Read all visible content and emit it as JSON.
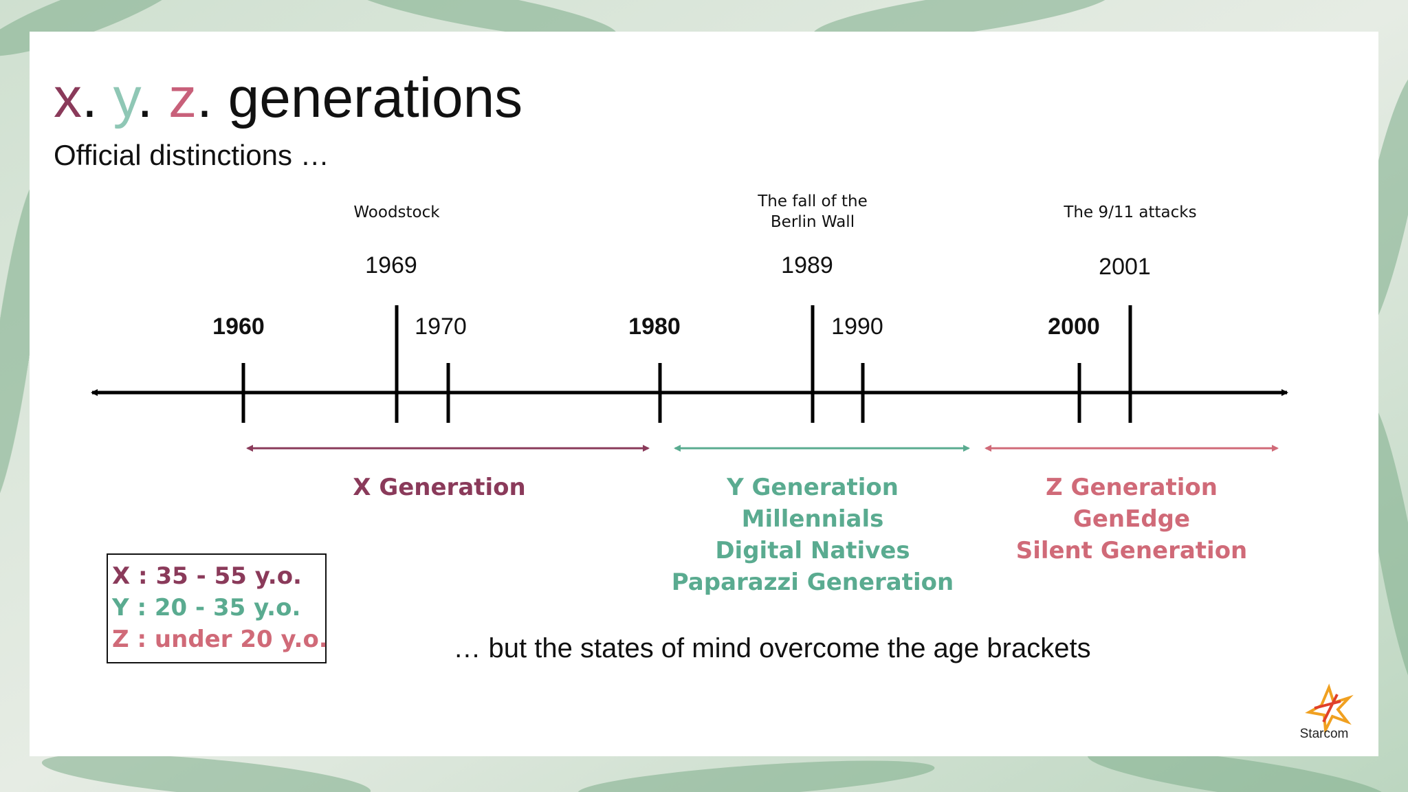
{
  "header": {
    "title": [
      "x",
      ". ",
      "y",
      ". ",
      "z",
      ". generations"
    ],
    "subtitle": "Official distinctions …"
  },
  "timeline": {
    "decades": [
      "1960",
      "1970",
      "1980",
      "1990",
      "2000"
    ],
    "events": [
      {
        "label": [
          "Woodstock"
        ],
        "year": "1969"
      },
      {
        "label": [
          "The fall of the",
          "Berlin Wall"
        ],
        "year": "1989"
      },
      {
        "label": [
          "The 9/11 attacks"
        ],
        "year": "2001"
      }
    ],
    "generations": [
      {
        "names": [
          "X Generation"
        ]
      },
      {
        "names": [
          "Y Generation",
          "Millennials",
          "Digital Natives",
          "Paparazzi Generation"
        ]
      },
      {
        "names": [
          "Z Generation",
          "GenEdge",
          "Silent Generation"
        ]
      }
    ]
  },
  "legend": [
    "X : 35 - 55 y.o.",
    "Y : 20 - 35 y.o.",
    "Z : under 20 y.o."
  ],
  "footer": {
    "note": "… but the states of mind overcome the age brackets",
    "logo": "Starcom"
  }
}
